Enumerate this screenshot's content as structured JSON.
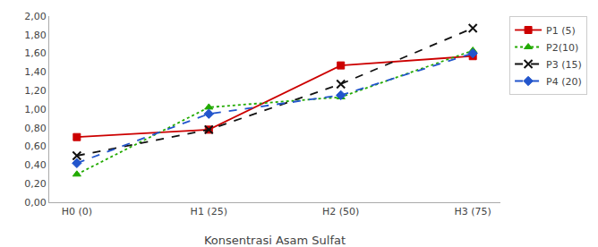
{
  "chart_data": {
    "type": "line",
    "xlabel": "Konsentrasi Asam Sulfat",
    "categories": [
      "H0 (0)",
      "H1 (25)",
      "H2 (50)",
      "H3 (75)"
    ],
    "series": [
      {
        "name": "P1 (5)",
        "color": "#cc0000",
        "marker": "square",
        "line_style": "solid",
        "values": [
          0.7,
          0.78,
          1.47,
          1.57
        ]
      },
      {
        "name": "P2(10)",
        "color": "#22aa00",
        "marker": "triangle-up",
        "line_style": "dotted",
        "values": [
          0.3,
          1.02,
          1.13,
          1.63
        ]
      },
      {
        "name": "P3 (15)",
        "color": "#111111",
        "marker": "x",
        "line_style": "dashed",
        "values": [
          0.5,
          0.78,
          1.27,
          1.87
        ]
      },
      {
        "name": "P4 (20)",
        "color": "#2255cc",
        "marker": "diamond",
        "line_style": "dashed",
        "values": [
          0.42,
          0.95,
          1.15,
          1.6
        ]
      }
    ],
    "ylim": [
      0.0,
      2.0
    ],
    "yticks": [
      {
        "value": 0.0,
        "label": "0,00"
      },
      {
        "value": 0.2,
        "label": "0,20"
      },
      {
        "value": 0.4,
        "label": "0,40"
      },
      {
        "value": 0.6,
        "label": "0,60"
      },
      {
        "value": 0.8,
        "label": "0,80"
      },
      {
        "value": 1.0,
        "label": "1,00"
      },
      {
        "value": 1.2,
        "label": "1,20"
      },
      {
        "value": 1.4,
        "label": "1,40"
      },
      {
        "value": 1.6,
        "label": "1,60"
      },
      {
        "value": 1.8,
        "label": "1,80"
      },
      {
        "value": 2.0,
        "label": "2,00"
      }
    ],
    "grid": false,
    "legend": "right"
  }
}
